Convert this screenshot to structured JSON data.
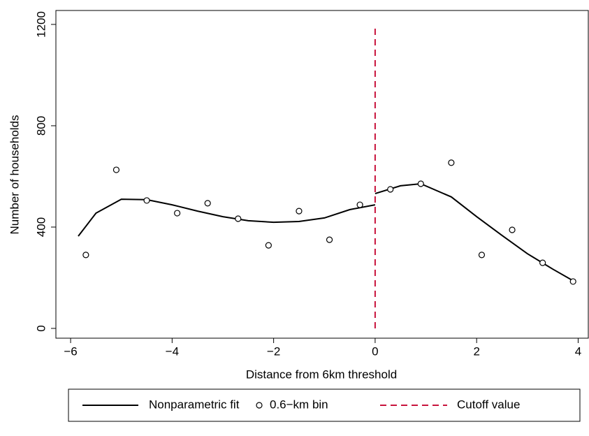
{
  "chart_data": {
    "type": "line",
    "xlabel": "Distance from 6km threshold",
    "ylabel": "Number of households",
    "xlim": [
      -6.29,
      4.2
    ],
    "ylim": [
      -38.6,
      1255
    ],
    "xticks": [
      {
        "value": -6,
        "label": "−6"
      },
      {
        "value": -4,
        "label": "−4"
      },
      {
        "value": -2,
        "label": "−2"
      },
      0,
      2,
      4
    ],
    "yticks": [
      0,
      400,
      800,
      1200
    ],
    "series": [
      {
        "name": "Nonparametric fit",
        "type": "line",
        "color": "#000000",
        "x": [
          -5.85,
          -5.5,
          -5,
          -4.5,
          -4,
          -3.5,
          -3,
          -2.5,
          -2,
          -1.5,
          -1,
          -0.5,
          0,
          0,
          0,
          0.5,
          0.9,
          1.5,
          2,
          2.5,
          3,
          3.5,
          3.9
        ],
        "values": [
          364,
          455,
          510,
          508,
          488,
          463,
          441,
          425,
          419,
          422,
          436,
          469,
          488,
          null,
          532,
          563,
          571,
          519,
          441,
          367,
          295,
          234,
          188
        ]
      },
      {
        "name": "0.6−km bin",
        "type": "scatter",
        "color": "#000000",
        "x": [
          -5.7,
          -5.1,
          -4.5,
          -3.9,
          -3.3,
          -2.7,
          -2.1,
          -1.5,
          -0.9,
          -0.3,
          0.3,
          0.9,
          1.5,
          2.1,
          2.7,
          3.3,
          3.9
        ],
        "values": [
          290,
          626,
          505,
          455,
          494,
          433,
          328,
          463,
          350,
          488,
          549,
          571,
          654,
          290,
          389,
          259,
          185
        ]
      }
    ],
    "cutoff": {
      "name": "Cutoff value",
      "x": 0,
      "y": [
        0,
        1200
      ],
      "color": "#c8133c"
    }
  }
}
